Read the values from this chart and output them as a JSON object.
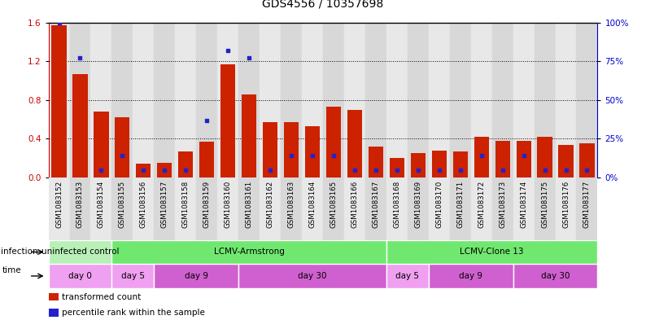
{
  "title": "GDS4556 / 10357698",
  "samples": [
    "GSM1083152",
    "GSM1083153",
    "GSM1083154",
    "GSM1083155",
    "GSM1083156",
    "GSM1083157",
    "GSM1083158",
    "GSM1083159",
    "GSM1083160",
    "GSM1083161",
    "GSM1083162",
    "GSM1083163",
    "GSM1083164",
    "GSM1083165",
    "GSM1083166",
    "GSM1083167",
    "GSM1083168",
    "GSM1083169",
    "GSM1083170",
    "GSM1083171",
    "GSM1083172",
    "GSM1083173",
    "GSM1083174",
    "GSM1083175",
    "GSM1083176",
    "GSM1083177"
  ],
  "transformed_count": [
    1.57,
    1.07,
    0.68,
    0.62,
    0.14,
    0.15,
    0.27,
    0.37,
    1.17,
    0.86,
    0.57,
    0.57,
    0.53,
    0.73,
    0.7,
    0.32,
    0.2,
    0.25,
    0.28,
    0.27,
    0.42,
    0.38,
    0.38,
    0.42,
    0.34,
    0.35
  ],
  "percentile_rank": [
    100,
    77,
    5,
    14,
    5,
    5,
    5,
    37,
    82,
    77,
    5,
    14,
    14,
    14,
    5,
    5,
    5,
    5,
    5,
    5,
    14,
    5,
    14,
    5,
    5,
    5
  ],
  "bar_color": "#cc2200",
  "dot_color": "#2222cc",
  "ylim_left": [
    0,
    1.6
  ],
  "ylim_right": [
    0,
    100
  ],
  "yticks_left": [
    0,
    0.4,
    0.8,
    1.2,
    1.6
  ],
  "yticks_right": [
    0,
    25,
    50,
    75,
    100
  ],
  "ytick_labels_right": [
    "0%",
    "25%",
    "50%",
    "75%",
    "100%"
  ],
  "infection_groups": [
    {
      "label": "uninfected control",
      "start": 0,
      "end": 3,
      "color": "#b8f0b8"
    },
    {
      "label": "LCMV-Armstrong",
      "start": 3,
      "end": 16,
      "color": "#70e870"
    },
    {
      "label": "LCMV-Clone 13",
      "start": 16,
      "end": 26,
      "color": "#70e870"
    }
  ],
  "time_groups": [
    {
      "label": "day 0",
      "start": 0,
      "end": 3,
      "color": "#f0a0f0"
    },
    {
      "label": "day 5",
      "start": 3,
      "end": 5,
      "color": "#f0a0f0"
    },
    {
      "label": "day 9",
      "start": 5,
      "end": 9,
      "color": "#d060d0"
    },
    {
      "label": "day 30",
      "start": 9,
      "end": 16,
      "color": "#d060d0"
    },
    {
      "label": "day 5",
      "start": 16,
      "end": 18,
      "color": "#f0a0f0"
    },
    {
      "label": "day 9",
      "start": 18,
      "end": 22,
      "color": "#d060d0"
    },
    {
      "label": "day 30",
      "start": 22,
      "end": 26,
      "color": "#d060d0"
    }
  ],
  "axis_color_left": "#cc0000",
  "axis_color_right": "#0000cc",
  "bar_width": 0.7,
  "bg_colors": [
    "#e8e8e8",
    "#d8d8d8"
  ]
}
